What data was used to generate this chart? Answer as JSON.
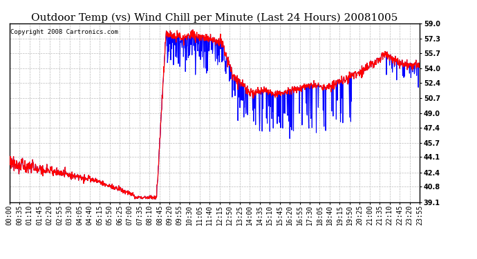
{
  "title": "Outdoor Temp (vs) Wind Chill per Minute (Last 24 Hours) 20081005",
  "copyright": "Copyright 2008 Cartronics.com",
  "y_ticks": [
    39.1,
    40.8,
    42.4,
    44.1,
    45.7,
    47.4,
    49.0,
    50.7,
    52.4,
    54.0,
    55.7,
    57.3,
    59.0
  ],
  "ylim": [
    39.1,
    59.0
  ],
  "x_tick_labels": [
    "00:00",
    "00:35",
    "01:10",
    "01:45",
    "02:20",
    "02:55",
    "03:30",
    "04:05",
    "04:40",
    "05:15",
    "05:50",
    "06:25",
    "07:00",
    "07:35",
    "08:10",
    "08:45",
    "09:20",
    "09:55",
    "10:30",
    "11:05",
    "11:40",
    "12:15",
    "12:50",
    "13:25",
    "14:00",
    "14:35",
    "15:10",
    "15:45",
    "16:20",
    "16:55",
    "17:30",
    "18:05",
    "18:40",
    "19:15",
    "19:50",
    "20:25",
    "21:00",
    "21:35",
    "22:10",
    "22:45",
    "23:20",
    "23:55"
  ],
  "background_color": "#ffffff",
  "plot_bg_color": "#ffffff",
  "grid_color": "#bbbbbb",
  "title_fontsize": 11,
  "copyright_fontsize": 6.5,
  "tick_fontsize": 7,
  "red_color": "#ff0000",
  "blue_color": "#0000ff",
  "linewidth_red": 0.9,
  "linewidth_blue": 0.8
}
